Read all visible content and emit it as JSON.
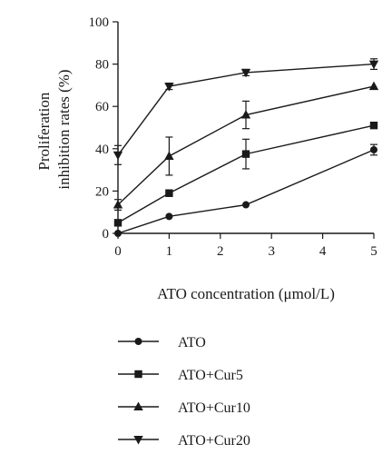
{
  "chart_data": {
    "type": "line",
    "xlabel": "ATO concentration (μmol/L)",
    "ylabel": "Proliferation inhibition rates (%)",
    "ylabel_lines": [
      "Proliferation",
      "inhibition rates (%)"
    ],
    "xlim": [
      0,
      5
    ],
    "ylim": [
      0,
      100
    ],
    "xticks": [
      0,
      1,
      2,
      3,
      4,
      5
    ],
    "yticks": [
      0,
      20,
      40,
      60,
      80,
      100
    ],
    "grid": false,
    "legend_position": "bottom",
    "x": [
      0,
      1,
      2.5,
      5
    ],
    "series": [
      {
        "name": "ATO",
        "marker": "circle",
        "values": [
          0,
          8,
          13.5,
          39.5
        ],
        "errors": [
          0,
          0,
          0,
          2.5
        ]
      },
      {
        "name": "ATO+Cur5",
        "marker": "square",
        "values": [
          5,
          19,
          37.5,
          51
        ],
        "errors": [
          0,
          1.5,
          7,
          0
        ]
      },
      {
        "name": "ATO+Cur10",
        "marker": "triangle-up",
        "values": [
          13.5,
          36.5,
          56,
          69.5
        ],
        "errors": [
          2.5,
          9,
          6.5,
          0
        ]
      },
      {
        "name": "ATO+Cur20",
        "marker": "triangle-down",
        "values": [
          37,
          69.5,
          76,
          80
        ],
        "errors": [
          4.5,
          1.5,
          1.5,
          2.5
        ]
      }
    ]
  }
}
